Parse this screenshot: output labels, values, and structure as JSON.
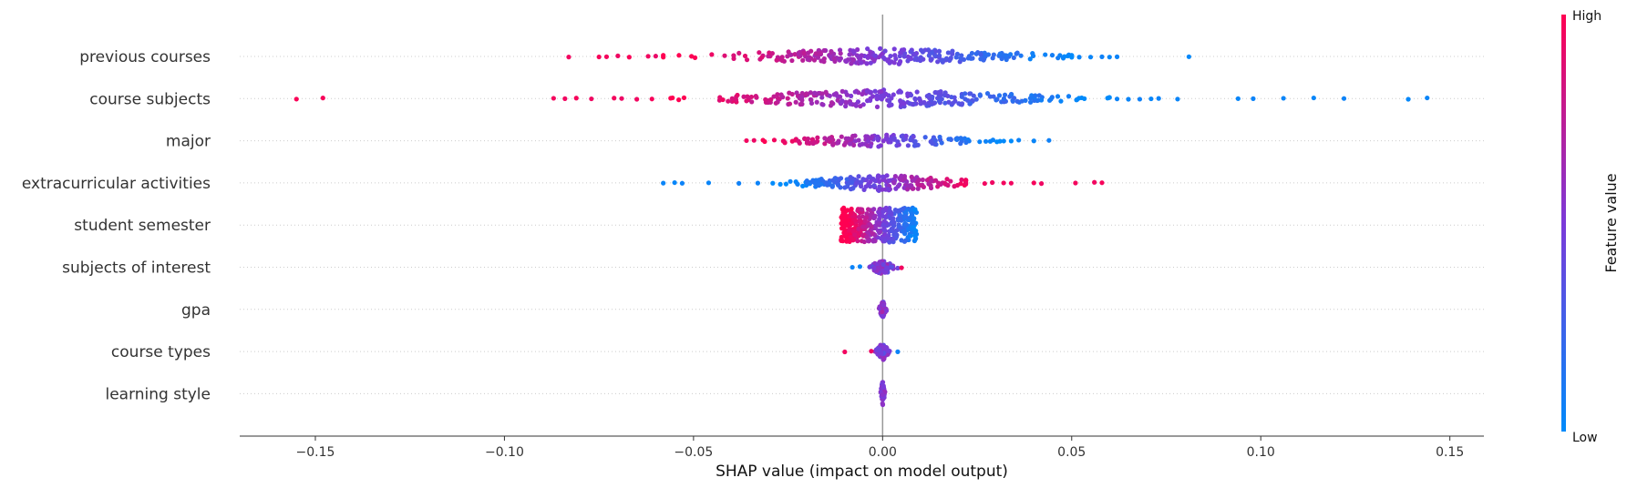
{
  "chart_data": {
    "type": "scatter",
    "subtype": "shap-beeswarm",
    "xlabel": "SHAP value (impact on model output)",
    "xlim": [
      -0.17,
      0.159
    ],
    "xticks": [
      -0.15,
      -0.1,
      -0.05,
      0.0,
      0.05,
      0.1,
      0.15
    ],
    "xtick_labels": [
      "−0.15",
      "−0.10",
      "−0.05",
      "0.00",
      "0.05",
      "0.10",
      "0.15"
    ],
    "colorbar": {
      "title": "Feature value",
      "high_label": "High",
      "low_label": "Low",
      "high_color": "#ff0052",
      "mid_color": "#7b3ad9",
      "low_color": "#008bfb"
    },
    "grid": "dotted horizontal row guides",
    "features": [
      {
        "name": "previous courses",
        "points": [
          {
            "x": -0.083,
            "v": 0.95
          },
          {
            "x": -0.075,
            "v": 0.97
          },
          {
            "x": -0.073,
            "v": 0.96
          },
          {
            "x": -0.07,
            "v": 0.94
          },
          {
            "x": -0.067,
            "v": 0.98
          },
          {
            "x": -0.062,
            "v": 0.95
          },
          {
            "x": -0.06,
            "v": 0.92
          },
          {
            "x": 0.052,
            "v": 0.05
          },
          {
            "x": 0.055,
            "v": 0.04
          },
          {
            "x": 0.058,
            "v": 0.06
          },
          {
            "x": 0.06,
            "v": 0.03
          },
          {
            "x": 0.062,
            "v": 0.05
          },
          {
            "x": 0.081,
            "v": 0.02
          }
        ],
        "dense": {
          "min": -0.058,
          "max": 0.05,
          "spread": 0.018,
          "n": 260
        }
      },
      {
        "name": "course subjects",
        "points": [
          {
            "x": -0.155,
            "v": 0.98
          },
          {
            "x": -0.148,
            "v": 0.97
          },
          {
            "x": -0.087,
            "v": 0.96
          },
          {
            "x": -0.084,
            "v": 0.95
          },
          {
            "x": -0.081,
            "v": 0.97
          },
          {
            "x": -0.077,
            "v": 0.94
          },
          {
            "x": -0.071,
            "v": 0.96
          },
          {
            "x": -0.069,
            "v": 0.93
          },
          {
            "x": -0.065,
            "v": 0.95
          },
          {
            "x": -0.061,
            "v": 0.97
          },
          {
            "x": 0.062,
            "v": 0.05
          },
          {
            "x": 0.065,
            "v": 0.04
          },
          {
            "x": 0.068,
            "v": 0.06
          },
          {
            "x": 0.071,
            "v": 0.03
          },
          {
            "x": 0.073,
            "v": 0.05
          },
          {
            "x": 0.078,
            "v": 0.04
          },
          {
            "x": 0.094,
            "v": 0.03
          },
          {
            "x": 0.098,
            "v": 0.05
          },
          {
            "x": 0.106,
            "v": 0.04
          },
          {
            "x": 0.114,
            "v": 0.03
          },
          {
            "x": 0.122,
            "v": 0.05
          },
          {
            "x": 0.139,
            "v": 0.02
          },
          {
            "x": 0.144,
            "v": 0.04
          }
        ],
        "dense": {
          "min": -0.058,
          "max": 0.06,
          "spread": 0.02,
          "n": 280
        }
      },
      {
        "name": "major",
        "points": [
          {
            "x": -0.036,
            "v": 0.95
          },
          {
            "x": -0.034,
            "v": 0.93
          },
          {
            "x": 0.036,
            "v": 0.05
          },
          {
            "x": 0.04,
            "v": 0.04
          },
          {
            "x": 0.044,
            "v": 0.06
          }
        ],
        "dense": {
          "min": -0.033,
          "max": 0.034,
          "spread": 0.014,
          "n": 150
        }
      },
      {
        "name": "extracurricular activities",
        "points": [
          {
            "x": -0.058,
            "v": 0.04
          },
          {
            "x": -0.055,
            "v": 0.03
          },
          {
            "x": -0.053,
            "v": 0.05
          },
          {
            "x": -0.046,
            "v": 0.04
          },
          {
            "x": -0.038,
            "v": 0.06
          },
          {
            "x": -0.033,
            "v": 0.05
          },
          {
            "x": 0.027,
            "v": 0.95
          },
          {
            "x": 0.029,
            "v": 0.94
          },
          {
            "x": 0.032,
            "v": 0.96
          },
          {
            "x": 0.034,
            "v": 0.95
          },
          {
            "x": 0.04,
            "v": 0.97
          },
          {
            "x": 0.042,
            "v": 0.94
          },
          {
            "x": 0.051,
            "v": 0.96
          },
          {
            "x": 0.056,
            "v": 0.95
          },
          {
            "x": 0.058,
            "v": 0.97
          }
        ],
        "dense": {
          "min": -0.031,
          "max": 0.022,
          "spread": 0.018,
          "n": 200
        }
      },
      {
        "name": "student semester",
        "points": [],
        "dense": {
          "min": -0.011,
          "max": 0.009,
          "spread": 0.038,
          "n": 360,
          "block": true
        }
      },
      {
        "name": "subjects of interest",
        "points": [
          {
            "x": -0.008,
            "v": 0.05
          },
          {
            "x": -0.006,
            "v": 0.04
          },
          {
            "x": 0.005,
            "v": 0.95
          }
        ],
        "dense": {
          "min": -0.004,
          "max": 0.004,
          "spread": 0.016,
          "n": 60
        }
      },
      {
        "name": "gpa",
        "points": [],
        "dense": {
          "min": -0.001,
          "max": 0.001,
          "spread": 0.02,
          "n": 50
        }
      },
      {
        "name": "course types",
        "points": [
          {
            "x": -0.01,
            "v": 0.95
          },
          {
            "x": -0.003,
            "v": 0.93
          },
          {
            "x": 0.004,
            "v": 0.05
          }
        ],
        "dense": {
          "min": -0.002,
          "max": 0.002,
          "spread": 0.02,
          "n": 60
        }
      },
      {
        "name": "learning style",
        "points": [],
        "dense": {
          "min": -0.0006,
          "max": 0.0006,
          "spread": 0.028,
          "n": 60
        }
      }
    ]
  }
}
